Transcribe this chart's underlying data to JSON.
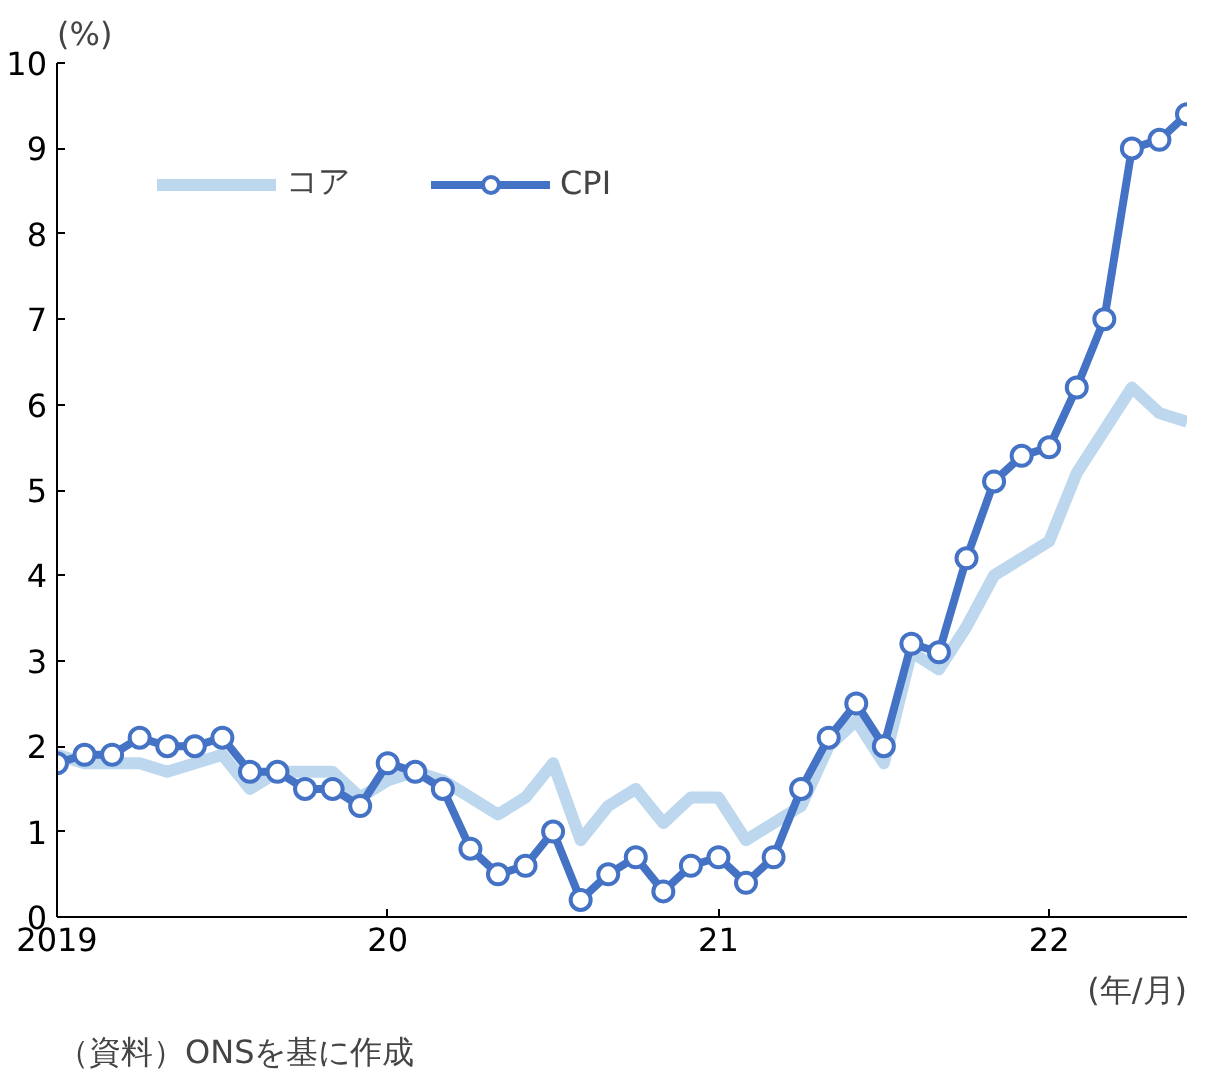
{
  "chart_data": {
    "type": "line",
    "xlabel": "(年/月)",
    "ylabel": "(%)",
    "annotations": [
      "（資料）ONSを基に作成"
    ],
    "x": [
      "2019-01",
      "2019-02",
      "2019-03",
      "2019-04",
      "2019-05",
      "2019-06",
      "2019-07",
      "2019-08",
      "2019-09",
      "2019-10",
      "2019-11",
      "2019-12",
      "2020-01",
      "2020-02",
      "2020-03",
      "2020-04",
      "2020-05",
      "2020-06",
      "2020-07",
      "2020-08",
      "2020-09",
      "2020-10",
      "2020-11",
      "2020-12",
      "2021-01",
      "2021-02",
      "2021-03",
      "2021-04",
      "2021-05",
      "2021-06",
      "2021-07",
      "2021-08",
      "2021-09",
      "2021-10",
      "2021-11",
      "2021-12",
      "2022-01",
      "2022-02",
      "2022-03",
      "2022-04",
      "2022-05",
      "2022-06"
    ],
    "series": [
      {
        "name": "コア",
        "color": "#bdd7ee",
        "marker": "none",
        "values": [
          1.9,
          1.8,
          1.8,
          1.8,
          1.7,
          1.8,
          1.9,
          1.5,
          1.7,
          1.7,
          1.7,
          1.4,
          1.6,
          1.7,
          1.6,
          1.4,
          1.2,
          1.4,
          1.8,
          0.9,
          1.3,
          1.5,
          1.1,
          1.4,
          1.4,
          0.9,
          1.1,
          1.3,
          2.0,
          2.3,
          1.8,
          3.1,
          2.9,
          3.4,
          4.0,
          4.2,
          4.4,
          5.2,
          5.7,
          6.2,
          5.9,
          5.8
        ]
      },
      {
        "name": "CPI",
        "color": "#4472c4",
        "marker": "circle",
        "values": [
          1.8,
          1.9,
          1.9,
          2.1,
          2.0,
          2.0,
          2.1,
          1.7,
          1.7,
          1.5,
          1.5,
          1.3,
          1.8,
          1.7,
          1.5,
          0.8,
          0.5,
          0.6,
          1.0,
          0.2,
          0.5,
          0.7,
          0.3,
          0.6,
          0.7,
          0.4,
          0.7,
          1.5,
          2.1,
          2.5,
          2.0,
          3.2,
          3.1,
          4.2,
          5.1,
          5.4,
          5.5,
          6.2,
          7.0,
          9.0,
          9.1,
          9.4
        ]
      }
    ],
    "xlim": [
      "2019-01",
      "2022-06"
    ],
    "xticks": [
      {
        "value": "2019-01",
        "label": "2019"
      },
      {
        "value": "2020-01",
        "label": "20"
      },
      {
        "value": "2021-01",
        "label": "21"
      },
      {
        "value": "2022-01",
        "label": "22"
      }
    ],
    "ylim": [
      0,
      10
    ],
    "yticks": [
      0,
      1,
      2,
      3,
      4,
      5,
      6,
      7,
      8,
      9,
      10
    ],
    "grid": false,
    "legend": "top left"
  }
}
